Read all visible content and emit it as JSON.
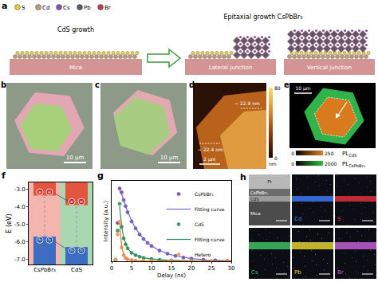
{
  "figure": {
    "a": {
      "label": "a",
      "atoms": [
        {
          "name": "S",
          "color": "#e6c84a"
        },
        {
          "name": "Cd",
          "color": "#b89a7a"
        },
        {
          "name": "Cs",
          "color": "#7a5aa8"
        },
        {
          "name": "Pb",
          "color": "#555d6b"
        },
        {
          "name": "Br",
          "color": "#b5405a"
        }
      ],
      "step1": "CdS growth",
      "step2": "Epitaxial growth CsPbBr₃",
      "substrate": "Mica",
      "lateral": "Lateral junction",
      "vertical": "Vertical junction"
    },
    "b": {
      "label": "b",
      "scale_bar": "10 μm"
    },
    "c": {
      "label": "c",
      "scale_bar": "10 μm"
    },
    "d": {
      "label": "d",
      "heights": [
        "~ 22.9 nm",
        "~ 22.4 nm"
      ],
      "scale_bar": "2 μm",
      "colorbar": {
        "range": [
          0,
          80
        ],
        "ticks": [
          0,
          80
        ],
        "unit": "nm"
      }
    },
    "e": {
      "label": "e",
      "scale_bar": "10 μm",
      "colorbars": [
        {
          "main": "PL",
          "sub": "CdS",
          "range": [
            0,
            250
          ],
          "ticks": [
            0,
            250
          ],
          "color": "#e08020"
        },
        {
          "main": "PL",
          "sub": "CsPbBr₃",
          "range": [
            0,
            2000
          ],
          "ticks": [
            0,
            2000
          ],
          "color": "#30c040"
        }
      ]
    },
    "h": {
      "label": "h",
      "layers": [
        "Pt",
        "CsPbBr₃",
        "CdS",
        "Mica"
      ],
      "maps": [
        {
          "element": "Cd",
          "color": "#3a78f0",
          "layer": "CdS"
        },
        {
          "element": "S",
          "color": "#e0303a",
          "layer": "CdS"
        },
        {
          "element": "Cs",
          "color": "#40c060",
          "layer": "CsPbBr₃"
        },
        {
          "element": "Pb",
          "color": "#e0d030",
          "layer": "CsPbBr₃"
        },
        {
          "element": "Br",
          "color": "#c060d0",
          "layer": "CsPbBr₃"
        }
      ]
    }
  },
  "chart_data": [
    {
      "label": "f",
      "type": "energy_levels",
      "categories": [
        "CsPbBr₃",
        "CdS"
      ],
      "conduction_band": [
        -3.35,
        -3.9
      ],
      "valence_band": [
        -5.7,
        -6.3
      ],
      "colors": [
        "#f3b5ae",
        "#a8d8b0"
      ],
      "electron": "e",
      "hole": "h",
      "ylabel": "E (eV)",
      "ylim": [
        -7.3,
        -2.6
      ],
      "yticks": [
        {
          "value": -7,
          "label": "-7.0"
        },
        {
          "value": -6,
          "label": "-6.0"
        },
        {
          "value": -5,
          "label": "-5.0"
        },
        {
          "value": -4,
          "label": "-4.0"
        },
        {
          "value": -3,
          "label": "-3.0"
        }
      ]
    },
    {
      "label": "g",
      "type": "line",
      "xlabel": "Delay (ns)",
      "ylabel": "Intensity (a.u.)",
      "xlim": [
        0,
        30
      ],
      "xticks": [
        0,
        5,
        10,
        15,
        20,
        25,
        30
      ],
      "ylim": [
        0,
        1.05
      ],
      "yticks": [],
      "tick_labels": "x",
      "legend": "upper right",
      "series": [
        {
          "name": "CsPbBr₃",
          "type": "scatter",
          "marker": "open-circle",
          "color": "#7e57a8",
          "x": [
            1.0,
            1.5,
            2.0,
            2.5,
            3,
            3.5,
            4,
            5,
            6,
            7,
            8,
            9,
            10,
            12,
            14,
            16,
            18,
            20,
            23,
            26,
            29
          ],
          "values": [
            0.02,
            0.5,
            0.95,
            0.9,
            0.8,
            0.72,
            0.64,
            0.52,
            0.43,
            0.35,
            0.29,
            0.24,
            0.2,
            0.14,
            0.1,
            0.07,
            0.05,
            0.035,
            0.02,
            0.012,
            0.008
          ]
        },
        {
          "name": "Fitting curve",
          "type": "line",
          "color": "#6a6ad8",
          "x": [
            2,
            2.5,
            3,
            4,
            5,
            6,
            8,
            10,
            12,
            14,
            16,
            18,
            20,
            24,
            28,
            30
          ],
          "values": [
            0.93,
            0.88,
            0.8,
            0.65,
            0.53,
            0.43,
            0.29,
            0.2,
            0.14,
            0.1,
            0.07,
            0.05,
            0.035,
            0.018,
            0.009,
            0.007
          ]
        },
        {
          "name": "CdS",
          "type": "scatter",
          "marker": "open-circle",
          "color": "#3a9a6a",
          "x": [
            1,
            1.5,
            2,
            2.5,
            3,
            3.5,
            4,
            5,
            6,
            7,
            8,
            10,
            12,
            15,
            20,
            25,
            29
          ],
          "values": [
            0.02,
            0.4,
            0.75,
            0.45,
            0.3,
            0.22,
            0.17,
            0.11,
            0.08,
            0.06,
            0.045,
            0.03,
            0.02,
            0.012,
            0.006,
            0.004,
            0.003
          ]
        },
        {
          "name": "Fitting curve",
          "type": "line",
          "color": "#2f8a4f",
          "x": [
            2,
            2.5,
            3,
            4,
            5,
            6,
            8,
            10,
            14,
            20,
            30
          ],
          "values": [
            0.72,
            0.46,
            0.31,
            0.17,
            0.11,
            0.08,
            0.045,
            0.03,
            0.014,
            0.006,
            0.002
          ]
        },
        {
          "name": "Hetero",
          "type": "scatter",
          "marker": "open-circle",
          "color": "#e8a060",
          "x": [
            1,
            1.5,
            2,
            2.5,
            3,
            3.5,
            4,
            5,
            6,
            8,
            10,
            15,
            20,
            25,
            29
          ],
          "values": [
            0.02,
            0.35,
            0.52,
            0.18,
            0.08,
            0.04,
            0.025,
            0.015,
            0.01,
            0.007,
            0.005,
            0.004,
            0.003,
            0.003,
            0.002
          ]
        },
        {
          "name": "Fitting curve",
          "type": "line",
          "color": "#f07830",
          "x": [
            2,
            2.5,
            3,
            3.5,
            4,
            5,
            6,
            8,
            12,
            20,
            30
          ],
          "values": [
            0.5,
            0.2,
            0.09,
            0.045,
            0.028,
            0.016,
            0.011,
            0.007,
            0.005,
            0.003,
            0.002
          ]
        }
      ]
    }
  ]
}
